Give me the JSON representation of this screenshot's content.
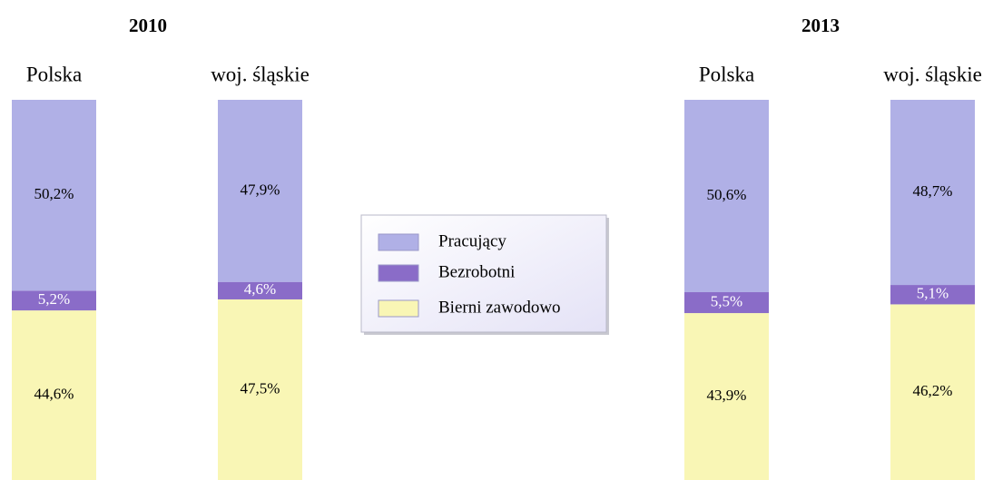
{
  "chart_data": [
    {
      "type": "stacked_bar",
      "title": "2010",
      "categories": [
        "Polska",
        "woj. śląskie"
      ],
      "ylim": [
        0,
        100
      ],
      "series": [
        {
          "name": "Pracujący",
          "color": "#b0b0e6",
          "values": [
            50.2,
            47.9
          ],
          "value_labels": [
            "50,2%",
            "47,9%"
          ]
        },
        {
          "name": "Bezrobotni",
          "color": "#8a6cc8",
          "values": [
            5.2,
            4.6
          ],
          "value_labels": [
            "5,2%",
            "4,6%"
          ]
        },
        {
          "name": "Bierni zawodowo",
          "color": "#f9f6b5",
          "values": [
            44.6,
            47.5
          ],
          "value_labels": [
            "44,6%",
            "47,5%"
          ]
        }
      ]
    },
    {
      "type": "stacked_bar",
      "title": "2013",
      "categories": [
        "Polska",
        "woj. śląskie"
      ],
      "ylim": [
        0,
        100
      ],
      "series": [
        {
          "name": "Pracujący",
          "color": "#b0b0e6",
          "values": [
            50.6,
            48.7
          ],
          "value_labels": [
            "50,6%",
            "48,7%"
          ]
        },
        {
          "name": "Bezrobotni",
          "color": "#8a6cc8",
          "values": [
            5.5,
            5.1
          ],
          "value_labels": [
            "5,5%",
            "5,1%"
          ]
        },
        {
          "name": "Bierni zawodowo",
          "color": "#f9f6b5",
          "values": [
            43.9,
            46.2
          ],
          "value_labels": [
            "43,9%",
            "46,2%"
          ]
        }
      ]
    }
  ]
}
